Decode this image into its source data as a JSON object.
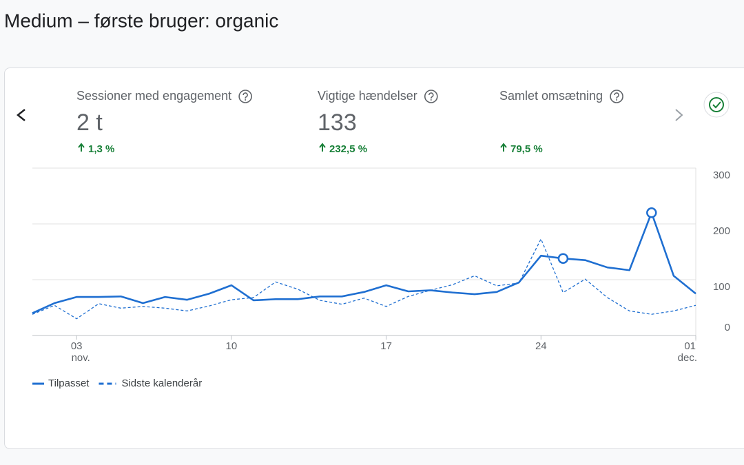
{
  "page_title": "Medium – første bruger: organic",
  "metrics": [
    {
      "label": "Sessioner med engagement",
      "value": "2 t",
      "change": "1,3 %"
    },
    {
      "label": "Vigtige hændelser",
      "value": "133",
      "change": "232,5 %"
    },
    {
      "label": "Samlet omsætning",
      "change": "79,5 %"
    }
  ],
  "chart_data": {
    "type": "line",
    "categories": [
      null,
      null,
      "03",
      null,
      null,
      null,
      null,
      null,
      null,
      "10",
      null,
      null,
      null,
      null,
      null,
      null,
      "17",
      null,
      null,
      null,
      null,
      null,
      null,
      "24",
      null,
      null,
      null,
      null,
      null,
      null,
      "01"
    ],
    "x_sublabels": [
      null,
      null,
      "nov.",
      null,
      null,
      null,
      null,
      null,
      null,
      null,
      null,
      null,
      null,
      null,
      null,
      null,
      null,
      null,
      null,
      null,
      null,
      null,
      null,
      null,
      null,
      null,
      null,
      null,
      null,
      null,
      "dec."
    ],
    "ylim": [
      0,
      300
    ],
    "yticks": [
      0,
      100,
      200,
      300
    ],
    "grid": true,
    "legend": "bottom-left",
    "series": [
      {
        "name": "Tilpasset",
        "color": "#1f6fd1",
        "style": "solid",
        "values": [
          40,
          58,
          69,
          69,
          70,
          58,
          69,
          64,
          75,
          90,
          63,
          65,
          65,
          70,
          70,
          78,
          90,
          79,
          81,
          77,
          74,
          78,
          95,
          143,
          138,
          135,
          122,
          117,
          220,
          107,
          75
        ]
      },
      {
        "name": "Sidste kalenderår",
        "color": "#1f6fd1",
        "style": "dashed",
        "values": [
          38,
          54,
          30,
          57,
          49,
          52,
          49,
          44,
          53,
          64,
          68,
          96,
          83,
          63,
          56,
          67,
          52,
          70,
          81,
          91,
          107,
          89,
          94,
          173,
          77,
          101,
          68,
          44,
          38,
          44,
          54
        ]
      }
    ],
    "markers": [
      24,
      28
    ]
  }
}
